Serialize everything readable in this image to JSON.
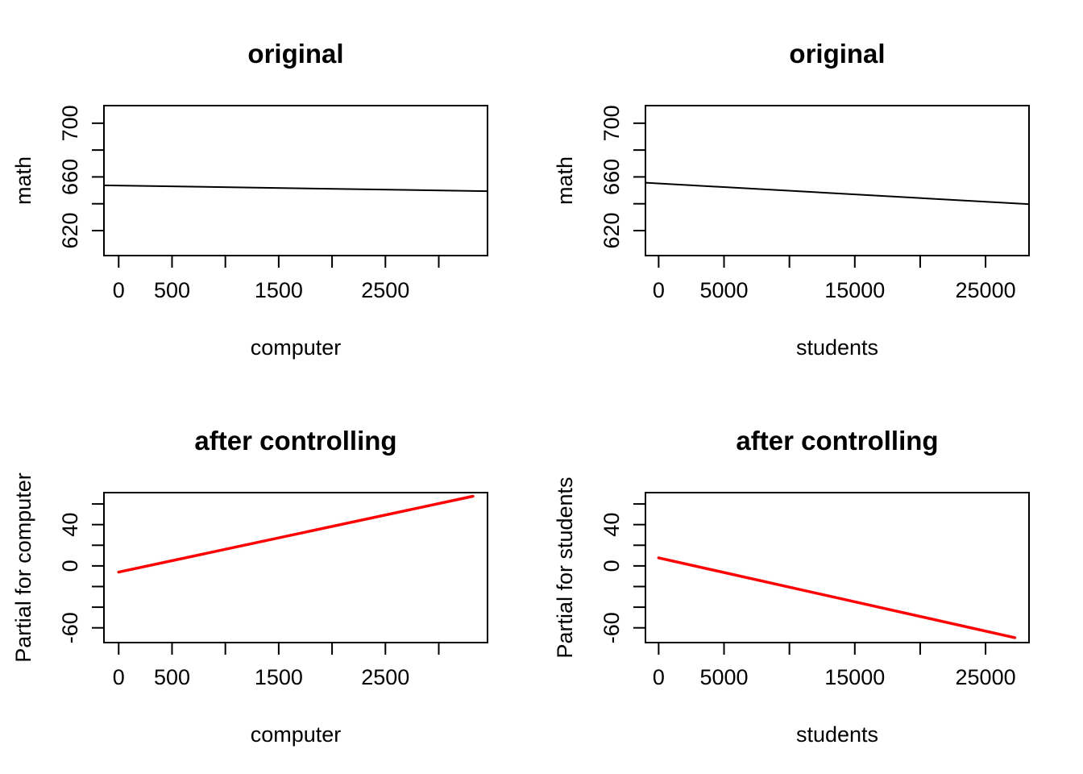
{
  "figure": {
    "background": "#ffffff",
    "line_colors": {
      "original_fit": "#000000",
      "partial_fit": "#FF0000"
    }
  },
  "chart_data": [
    {
      "type": "line",
      "title": "original",
      "xlabel": "computer",
      "ylabel": "math",
      "xlim": [
        -138,
        3457
      ],
      "ylim": [
        601.4,
        713.1
      ],
      "grid": false,
      "legend": null,
      "x_ticks": {
        "values": [
          0,
          500,
          1000,
          1500,
          2000,
          2500,
          3000
        ],
        "labels": [
          "0",
          "500",
          "",
          "1500",
          "",
          "2500",
          ""
        ]
      },
      "y_ticks": {
        "values": [
          620,
          640,
          660,
          680,
          700
        ],
        "labels": [
          "620",
          "",
          "660",
          "",
          "700"
        ]
      },
      "series": [
        {
          "name": "fit",
          "color": "#000000",
          "width": 2,
          "points": [
            [
              -138,
              653.7
            ],
            [
              3457,
              649.4
            ]
          ]
        }
      ]
    },
    {
      "type": "line",
      "title": "original",
      "xlabel": "students",
      "ylabel": "math",
      "xlim": [
        -1009,
        28323
      ],
      "ylim": [
        601.4,
        713.1
      ],
      "grid": false,
      "legend": null,
      "x_ticks": {
        "values": [
          0,
          5000,
          10000,
          15000,
          20000,
          25000
        ],
        "labels": [
          "0",
          "5000",
          "",
          "15000",
          "",
          "25000"
        ]
      },
      "y_ticks": {
        "values": [
          620,
          640,
          660,
          680,
          700
        ],
        "labels": [
          "620",
          "",
          "660",
          "",
          "700"
        ]
      },
      "series": [
        {
          "name": "fit",
          "color": "#000000",
          "width": 2,
          "points": [
            [
              -1009,
              655.7
            ],
            [
              28323,
              639.7
            ]
          ]
        }
      ]
    },
    {
      "type": "line",
      "title": "after controlling",
      "xlabel": "computer",
      "ylabel": "Partial for computer",
      "xlim": [
        -138,
        3457
      ],
      "ylim": [
        -74.3,
        71.0
      ],
      "grid": false,
      "legend": null,
      "x_ticks": {
        "values": [
          0,
          500,
          1000,
          1500,
          2000,
          2500,
          3000
        ],
        "labels": [
          "0",
          "500",
          "",
          "1500",
          "",
          "2500",
          ""
        ]
      },
      "y_ticks": {
        "values": [
          -60,
          -40,
          -20,
          0,
          20,
          40,
          60
        ],
        "labels": [
          "-60",
          "",
          "",
          "0",
          "",
          "40",
          ""
        ]
      },
      "series": [
        {
          "name": "partial-fit",
          "color": "#FF0000",
          "width": 3.5,
          "points": [
            [
              0,
              -6.0
            ],
            [
              3320,
              67.5
            ]
          ]
        }
      ]
    },
    {
      "type": "line",
      "title": "after controlling",
      "xlabel": "students",
      "ylabel": "Partial for students",
      "xlim": [
        -1009,
        28323
      ],
      "ylim": [
        -74.3,
        71.0
      ],
      "grid": false,
      "legend": null,
      "x_ticks": {
        "values": [
          0,
          5000,
          10000,
          15000,
          20000,
          25000
        ],
        "labels": [
          "0",
          "5000",
          "",
          "15000",
          "",
          "25000"
        ]
      },
      "y_ticks": {
        "values": [
          -60,
          -40,
          -20,
          0,
          20,
          40,
          60
        ],
        "labels": [
          "-60",
          "",
          "",
          "0",
          "",
          "40",
          ""
        ]
      },
      "series": [
        {
          "name": "partial-fit",
          "color": "#FF0000",
          "width": 3.5,
          "points": [
            [
              0,
              7.8
            ],
            [
              27240,
              -69.5
            ]
          ]
        }
      ]
    }
  ]
}
